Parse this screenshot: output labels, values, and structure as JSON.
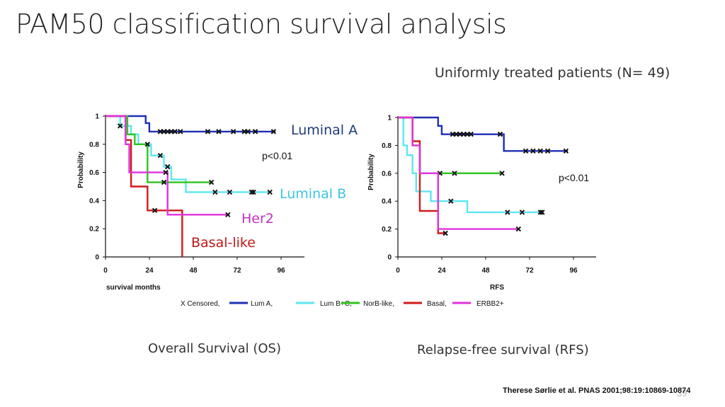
{
  "title": "PAM50 classification survival analysis",
  "subtitle": "Uniformly treated patients (N= 49)",
  "captions": {
    "os": "Overall Survival (OS)",
    "rfs": "Relapse-free survival (RFS)"
  },
  "citation": "Therese Sørlie et al. PNAS 2001;98:19:10869-10874",
  "page_number": "39",
  "legend": {
    "censored_label": "X Censored,",
    "entries": [
      {
        "label": "Lum A,",
        "color": "#1f2fb5"
      },
      {
        "label": "Lum B+C,",
        "color": "#5ce6f2"
      },
      {
        "label": "NorB-like,",
        "color": "#2ec41f"
      },
      {
        "label": "Basal,",
        "color": "#d01a1a"
      },
      {
        "label": "ERBB2+",
        "color": "#e032de"
      }
    ]
  },
  "chart_data": [
    {
      "type": "line",
      "title": "Overall Survival (OS)",
      "xlabel": "survival months",
      "ylabel": "Probability",
      "xlim": [
        0,
        108
      ],
      "ylim": [
        0,
        1
      ],
      "xticks": [
        "0",
        "24",
        "48",
        "72",
        "96"
      ],
      "yticks": [
        "0",
        "0.2",
        "0.4",
        "0.6",
        "0.8",
        "1"
      ],
      "pvalue": "p<0.01",
      "annotations": [
        {
          "text": "Luminal A",
          "color": "#1f3a7a"
        },
        {
          "text": "Luminal B",
          "color": "#3ec6e0"
        },
        {
          "text": "Her2",
          "color": "#c030c0"
        },
        {
          "text": "Basal-like",
          "color": "#c01818"
        }
      ],
      "series": [
        {
          "name": "Lum A",
          "color": "#1f2fb5",
          "steps": [
            [
              0,
              1
            ],
            [
              22,
              0.95
            ],
            [
              24,
              0.89
            ],
            [
              93,
              0.89
            ]
          ],
          "censored": [
            [
              30,
              0.89
            ],
            [
              32,
              0.89
            ],
            [
              34,
              0.89
            ],
            [
              36,
              0.89
            ],
            [
              38,
              0.89
            ],
            [
              41,
              0.89
            ],
            [
              56,
              0.89
            ],
            [
              62,
              0.89
            ],
            [
              70,
              0.89
            ],
            [
              76,
              0.89
            ],
            [
              78,
              0.89
            ],
            [
              82,
              0.89
            ],
            [
              92,
              0.89
            ]
          ]
        },
        {
          "name": "Lum B+C",
          "color": "#5ce6f2",
          "steps": [
            [
              0,
              1
            ],
            [
              8,
              0.93
            ],
            [
              14,
              0.87
            ],
            [
              18,
              0.8
            ],
            [
              25,
              0.72
            ],
            [
              32,
              0.64
            ],
            [
              36,
              0.55
            ],
            [
              44,
              0.46
            ],
            [
              90,
              0.46
            ]
          ],
          "censored": [
            [
              8,
              0.93
            ],
            [
              30,
              0.72
            ],
            [
              34,
              0.64
            ],
            [
              60,
              0.46
            ],
            [
              68,
              0.46
            ],
            [
              80,
              0.46
            ],
            [
              81,
              0.46
            ],
            [
              90,
              0.46
            ]
          ]
        },
        {
          "name": "NorB-like",
          "color": "#2ec41f",
          "steps": [
            [
              0,
              1
            ],
            [
              12,
              0.87
            ],
            [
              16,
              0.8
            ],
            [
              23,
              0.53
            ],
            [
              58,
              0.53
            ]
          ],
          "censored": [
            [
              23,
              0.8
            ],
            [
              32,
              0.53
            ],
            [
              58,
              0.53
            ]
          ]
        },
        {
          "name": "Basal",
          "color": "#d01a1a",
          "steps": [
            [
              0,
              1
            ],
            [
              11,
              0.83
            ],
            [
              14,
              0.5
            ],
            [
              23,
              0.33
            ],
            [
              42,
              0.0
            ]
          ],
          "censored": [
            [
              27,
              0.33
            ]
          ]
        },
        {
          "name": "ERBB2+",
          "color": "#e032de",
          "steps": [
            [
              0,
              1
            ],
            [
              11,
              0.8
            ],
            [
              13,
              0.6
            ],
            [
              34,
              0.3
            ],
            [
              67,
              0.3
            ]
          ],
          "censored": [
            [
              33,
              0.6
            ],
            [
              67,
              0.3
            ]
          ]
        }
      ]
    },
    {
      "type": "line",
      "title": "Relapse-free survival (RFS)",
      "xlabel": "RFS",
      "ylabel": "Probability",
      "xlim": [
        0,
        108
      ],
      "ylim": [
        0,
        1
      ],
      "xticks": [
        "0",
        "24",
        "48",
        "72",
        "96"
      ],
      "yticks": [
        "0",
        "0.2",
        "0.4",
        "0.6",
        "0.8",
        "1"
      ],
      "pvalue": "p<0.01",
      "annotations": [],
      "series": [
        {
          "name": "Lum A",
          "color": "#1f2fb5",
          "steps": [
            [
              0,
              1
            ],
            [
              22,
              0.94
            ],
            [
              24,
              0.88
            ],
            [
              58,
              0.76
            ],
            [
              93,
              0.76
            ]
          ],
          "censored": [
            [
              30,
              0.88
            ],
            [
              32,
              0.88
            ],
            [
              34,
              0.88
            ],
            [
              36,
              0.88
            ],
            [
              38,
              0.88
            ],
            [
              40,
              0.88
            ],
            [
              56,
              0.88
            ],
            [
              70,
              0.76
            ],
            [
              74,
              0.76
            ],
            [
              78,
              0.76
            ],
            [
              82,
              0.76
            ],
            [
              92,
              0.76
            ]
          ]
        },
        {
          "name": "Lum B+C",
          "color": "#5ce6f2",
          "steps": [
            [
              0,
              1
            ],
            [
              3,
              0.8
            ],
            [
              5,
              0.73
            ],
            [
              8,
              0.6
            ],
            [
              10,
              0.47
            ],
            [
              18,
              0.4
            ],
            [
              38,
              0.32
            ],
            [
              79,
              0.32
            ]
          ],
          "censored": [
            [
              29,
              0.4
            ],
            [
              60,
              0.32
            ],
            [
              68,
              0.32
            ],
            [
              78,
              0.32
            ],
            [
              79,
              0.32
            ]
          ]
        },
        {
          "name": "NorB-like",
          "color": "#2ec41f",
          "steps": [
            [
              0,
              1
            ],
            [
              8,
              0.8
            ],
            [
              12,
              0.6
            ],
            [
              57,
              0.6
            ]
          ],
          "censored": [
            [
              23,
              0.6
            ],
            [
              31,
              0.6
            ],
            [
              57,
              0.6
            ]
          ]
        },
        {
          "name": "Basal",
          "color": "#d01a1a",
          "steps": [
            [
              0,
              1
            ],
            [
              8,
              0.83
            ],
            [
              12,
              0.33
            ],
            [
              22,
              0.17
            ],
            [
              26,
              0.17
            ]
          ],
          "censored": [
            [
              26,
              0.17
            ]
          ]
        },
        {
          "name": "ERBB2+",
          "color": "#e032de",
          "steps": [
            [
              0,
              1
            ],
            [
              8,
              0.8
            ],
            [
              12,
              0.6
            ],
            [
              22,
              0.2
            ],
            [
              66,
              0.2
            ]
          ],
          "censored": [
            [
              66,
              0.2
            ]
          ]
        }
      ]
    }
  ]
}
